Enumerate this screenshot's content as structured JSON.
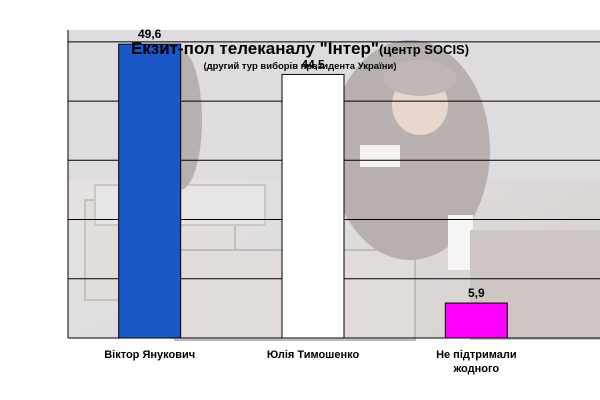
{
  "chart_data": {
    "type": "bar",
    "title_main": "Екзит-пол телеканалу \"Інтер\"",
    "title_suffix": "(центр SOCIS)",
    "subtitle": "(другий тур виборів президента України)",
    "categories": [
      [
        "Віктор Янукович"
      ],
      [
        "Юлія Тимошенко"
      ],
      [
        "Не підтримали",
        "жодного"
      ]
    ],
    "values": [
      49.6,
      44.5,
      5.9
    ],
    "value_labels": [
      "49,6",
      "44,5",
      "5,9"
    ],
    "bar_colors": [
      "#1a57c7",
      "#ffffff",
      "#ff00ff"
    ],
    "ylim": [
      0,
      52
    ],
    "grid": true
  }
}
